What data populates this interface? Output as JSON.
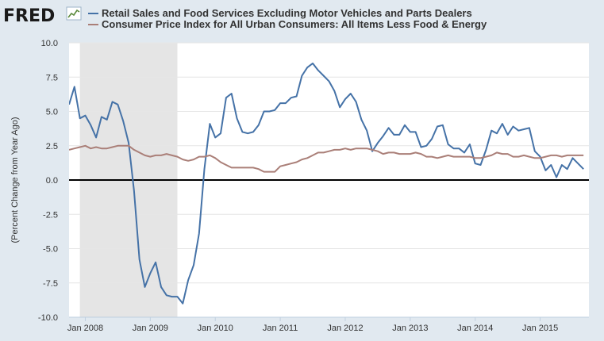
{
  "brand": {
    "logo_text": "FRED",
    "logo_icon": "line-chart-icon"
  },
  "chart_data": {
    "type": "line",
    "title": "",
    "xlabel": "",
    "ylabel": "(Percent Change from Year Ago)",
    "ylim": [
      -10,
      10
    ],
    "yticks": [
      10,
      7.5,
      5,
      2.5,
      0,
      -2.5,
      -5,
      -7.5,
      -10
    ],
    "ytick_labels": [
      "10.0",
      "7.5",
      "5.0",
      "2.5",
      "0.0",
      "-2.5",
      "-5.0",
      "-7.5",
      "-10.0"
    ],
    "xlim": [
      2007.75,
      2015.75
    ],
    "xticks": [
      2008,
      2009,
      2010,
      2011,
      2012,
      2013,
      2014,
      2015
    ],
    "xtick_labels": [
      "Jan 2008",
      "Jan 2009",
      "Jan 2010",
      "Jan 2011",
      "Jan 2012",
      "Jan 2013",
      "Jan 2014",
      "Jan 2015"
    ],
    "grid": true,
    "legend": "top",
    "recession_shading": [
      2007.917,
      2009.417
    ],
    "zero_line": true,
    "series": [
      {
        "name": "Retail Sales and Food Services Excluding Motor Vehicles and Parts Dealers",
        "color": "#4572a7",
        "x": [
          2007.75,
          2007.833,
          2007.917,
          2008.0,
          2008.083,
          2008.167,
          2008.25,
          2008.333,
          2008.417,
          2008.5,
          2008.583,
          2008.667,
          2008.75,
          2008.833,
          2008.917,
          2009.0,
          2009.083,
          2009.167,
          2009.25,
          2009.333,
          2009.417,
          2009.5,
          2009.583,
          2009.667,
          2009.75,
          2009.833,
          2009.917,
          2010.0,
          2010.083,
          2010.167,
          2010.25,
          2010.333,
          2010.417,
          2010.5,
          2010.583,
          2010.667,
          2010.75,
          2010.833,
          2010.917,
          2011.0,
          2011.083,
          2011.167,
          2011.25,
          2011.333,
          2011.417,
          2011.5,
          2011.583,
          2011.667,
          2011.75,
          2011.833,
          2011.917,
          2012.0,
          2012.083,
          2012.167,
          2012.25,
          2012.333,
          2012.417,
          2012.5,
          2012.583,
          2012.667,
          2012.75,
          2012.833,
          2012.917,
          2013.0,
          2013.083,
          2013.167,
          2013.25,
          2013.333,
          2013.417,
          2013.5,
          2013.583,
          2013.667,
          2013.75,
          2013.833,
          2013.917,
          2014.0,
          2014.083,
          2014.167,
          2014.25,
          2014.333,
          2014.417,
          2014.5,
          2014.583,
          2014.667,
          2014.75,
          2014.833,
          2014.917,
          2015.0,
          2015.083,
          2015.167,
          2015.25,
          2015.333,
          2015.417,
          2015.5,
          2015.583,
          2015.667
        ],
        "values": [
          5.5,
          6.8,
          4.5,
          4.7,
          4.0,
          3.1,
          4.6,
          4.4,
          5.7,
          5.5,
          4.3,
          2.7,
          -0.8,
          -5.8,
          -7.8,
          -6.8,
          -6.0,
          -7.8,
          -8.4,
          -8.5,
          -8.5,
          -9.0,
          -7.3,
          -6.2,
          -3.9,
          0.8,
          4.1,
          3.1,
          3.4,
          6.0,
          6.3,
          4.5,
          3.5,
          3.4,
          3.5,
          4.0,
          5.0,
          5.0,
          5.1,
          5.6,
          5.6,
          6.0,
          6.1,
          7.6,
          8.2,
          8.5,
          8.0,
          7.6,
          7.2,
          6.5,
          5.3,
          5.9,
          6.3,
          5.7,
          4.4,
          3.6,
          2.1,
          2.7,
          3.2,
          3.8,
          3.3,
          3.3,
          4.0,
          3.5,
          3.5,
          2.4,
          2.5,
          3.0,
          3.9,
          4.0,
          2.6,
          2.3,
          2.3,
          2.0,
          2.6,
          1.2,
          1.1,
          2.2,
          3.6,
          3.4,
          4.1,
          3.3,
          3.9,
          3.6,
          3.7,
          3.8,
          2.1,
          1.7,
          0.7,
          1.1,
          0.2,
          1.1,
          0.8,
          1.6,
          1.2,
          0.8
        ]
      },
      {
        "name": "Consumer Price Index for All Urban Consumers: All Items Less Food & Energy",
        "color": "#aa7f78",
        "x": [
          2007.75,
          2007.833,
          2007.917,
          2008.0,
          2008.083,
          2008.167,
          2008.25,
          2008.333,
          2008.417,
          2008.5,
          2008.583,
          2008.667,
          2008.75,
          2008.833,
          2008.917,
          2009.0,
          2009.083,
          2009.167,
          2009.25,
          2009.333,
          2009.417,
          2009.5,
          2009.583,
          2009.667,
          2009.75,
          2009.833,
          2009.917,
          2010.0,
          2010.083,
          2010.167,
          2010.25,
          2010.333,
          2010.417,
          2010.5,
          2010.583,
          2010.667,
          2010.75,
          2010.833,
          2010.917,
          2011.0,
          2011.083,
          2011.167,
          2011.25,
          2011.333,
          2011.417,
          2011.5,
          2011.583,
          2011.667,
          2011.75,
          2011.833,
          2011.917,
          2012.0,
          2012.083,
          2012.167,
          2012.25,
          2012.333,
          2012.417,
          2012.5,
          2012.583,
          2012.667,
          2012.75,
          2012.833,
          2012.917,
          2013.0,
          2013.083,
          2013.167,
          2013.25,
          2013.333,
          2013.417,
          2013.5,
          2013.583,
          2013.667,
          2013.75,
          2013.833,
          2013.917,
          2014.0,
          2014.083,
          2014.167,
          2014.25,
          2014.333,
          2014.417,
          2014.5,
          2014.583,
          2014.667,
          2014.75,
          2014.833,
          2014.917,
          2015.0,
          2015.083,
          2015.167,
          2015.25,
          2015.333,
          2015.417,
          2015.5,
          2015.583,
          2015.667
        ],
        "values": [
          2.2,
          2.3,
          2.4,
          2.5,
          2.3,
          2.4,
          2.3,
          2.3,
          2.4,
          2.5,
          2.5,
          2.5,
          2.2,
          2.0,
          1.8,
          1.7,
          1.8,
          1.8,
          1.9,
          1.8,
          1.7,
          1.5,
          1.4,
          1.5,
          1.7,
          1.7,
          1.8,
          1.6,
          1.3,
          1.1,
          0.9,
          0.9,
          0.9,
          0.9,
          0.9,
          0.8,
          0.6,
          0.6,
          0.6,
          1.0,
          1.1,
          1.2,
          1.3,
          1.5,
          1.6,
          1.8,
          2.0,
          2.0,
          2.1,
          2.2,
          2.2,
          2.3,
          2.2,
          2.3,
          2.3,
          2.3,
          2.2,
          2.1,
          1.9,
          2.0,
          2.0,
          1.9,
          1.9,
          1.9,
          2.0,
          1.9,
          1.7,
          1.7,
          1.6,
          1.7,
          1.8,
          1.7,
          1.7,
          1.7,
          1.7,
          1.6,
          1.6,
          1.7,
          1.8,
          2.0,
          1.9,
          1.9,
          1.7,
          1.7,
          1.8,
          1.7,
          1.6,
          1.6,
          1.7,
          1.8,
          1.8,
          1.7,
          1.8,
          1.8,
          1.8,
          1.8
        ]
      }
    ]
  }
}
